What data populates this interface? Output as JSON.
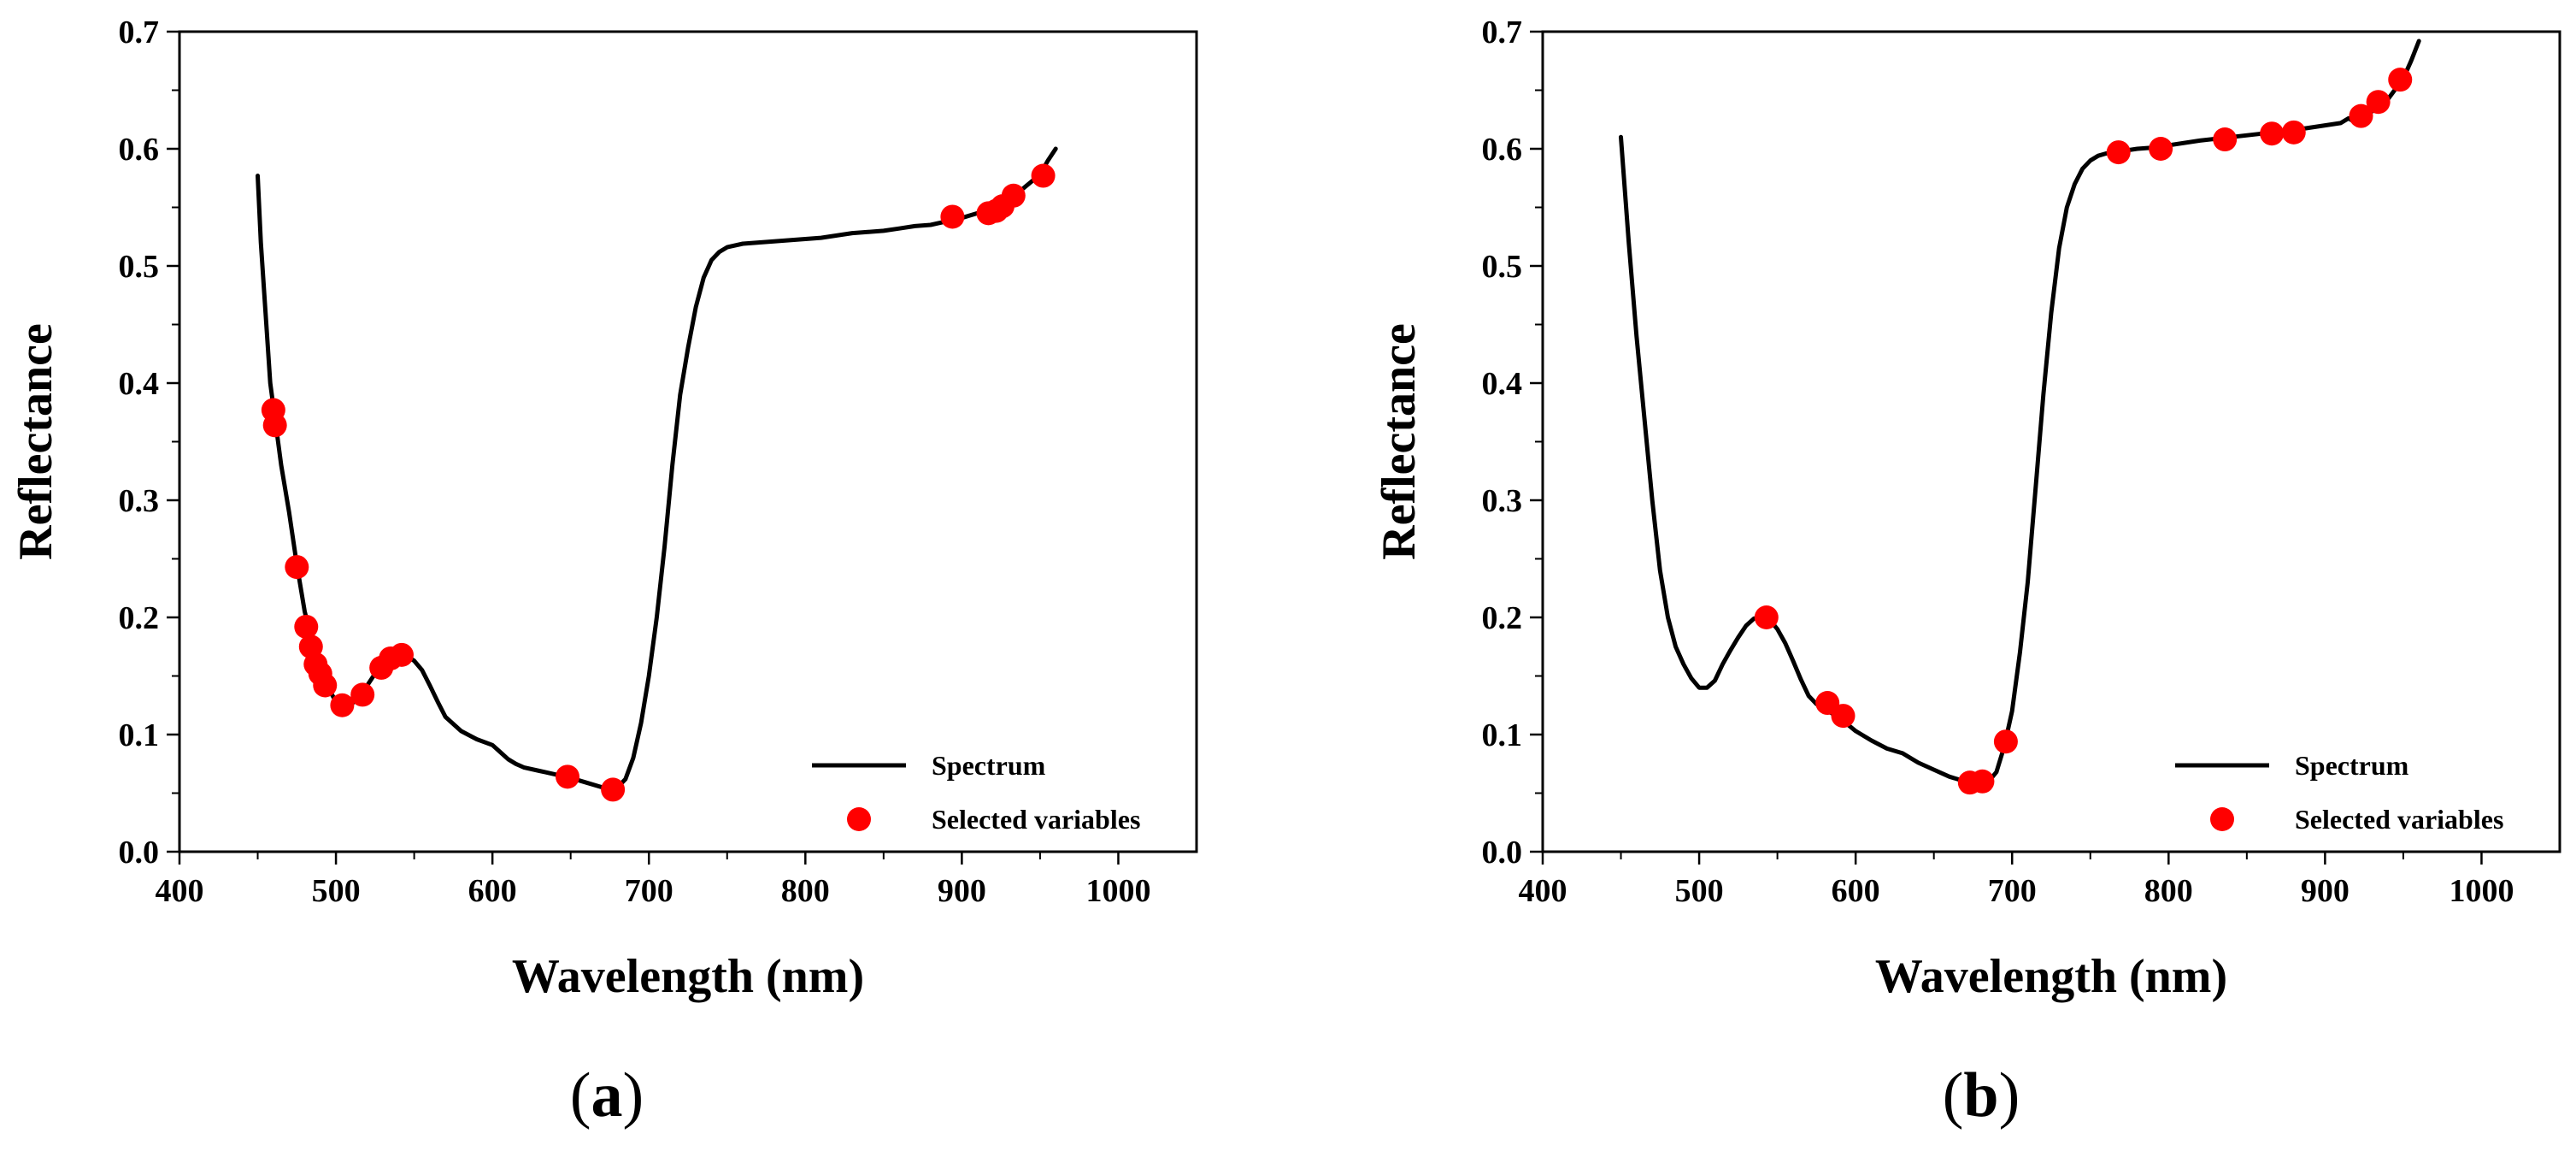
{
  "chart_data": [
    {
      "panel_label": "(a)",
      "panel_letter": "a",
      "type": "line",
      "xlabel": "Wavelength (nm)",
      "ylabel": "Reflectance",
      "xlim": [
        400,
        1050
      ],
      "ylim": [
        0.0,
        0.7
      ],
      "x_ticks": [
        "400",
        "500",
        "600",
        "700",
        "800",
        "900",
        "1000"
      ],
      "y_ticks": [
        "0.0",
        "0.1",
        "0.2",
        "0.3",
        "0.4",
        "0.5",
        "0.6",
        "0.7"
      ],
      "grid": false,
      "legend_position": "bottom-right",
      "colors": {
        "spectrum": "#000000",
        "selected": "#ff0000"
      },
      "series": [
        {
          "name": "Spectrum",
          "style": "line",
          "x": [
            450,
            452,
            455,
            458,
            461,
            465,
            470,
            475,
            480,
            485,
            490,
            495,
            500,
            505,
            510,
            515,
            520,
            525,
            530,
            535,
            540,
            545,
            550,
            555,
            560,
            565,
            570,
            580,
            590,
            600,
            605,
            610,
            615,
            620,
            630,
            640,
            650,
            660,
            670,
            675,
            680,
            685,
            690,
            695,
            700,
            705,
            710,
            715,
            720,
            725,
            730,
            735,
            740,
            745,
            750,
            760,
            770,
            780,
            790,
            800,
            810,
            820,
            830,
            840,
            850,
            860,
            870,
            880,
            890,
            900,
            910,
            920,
            930,
            940,
            950,
            955,
            960
          ],
          "y": [
            0.577,
            0.52,
            0.46,
            0.4,
            0.37,
            0.33,
            0.29,
            0.245,
            0.205,
            0.178,
            0.155,
            0.14,
            0.128,
            0.124,
            0.126,
            0.133,
            0.142,
            0.152,
            0.16,
            0.165,
            0.168,
            0.167,
            0.163,
            0.155,
            0.142,
            0.128,
            0.115,
            0.103,
            0.096,
            0.091,
            0.085,
            0.079,
            0.075,
            0.072,
            0.069,
            0.066,
            0.063,
            0.059,
            0.055,
            0.054,
            0.055,
            0.062,
            0.08,
            0.11,
            0.15,
            0.2,
            0.26,
            0.33,
            0.39,
            0.43,
            0.465,
            0.49,
            0.505,
            0.512,
            0.516,
            0.519,
            0.52,
            0.521,
            0.522,
            0.523,
            0.524,
            0.526,
            0.528,
            0.529,
            0.53,
            0.532,
            0.534,
            0.535,
            0.538,
            0.541,
            0.545,
            0.55,
            0.557,
            0.567,
            0.578,
            0.59,
            0.6
          ]
        },
        {
          "name": "Selected variables",
          "style": "marker",
          "x": [
            460,
            461,
            475,
            481,
            484,
            487,
            490,
            493,
            504,
            517,
            529,
            535,
            542,
            648,
            677,
            894,
            917,
            922,
            926,
            933,
            952
          ],
          "y": [
            0.377,
            0.364,
            0.243,
            0.192,
            0.175,
            0.16,
            0.152,
            0.142,
            0.125,
            0.134,
            0.157,
            0.165,
            0.168,
            0.064,
            0.053,
            0.542,
            0.545,
            0.547,
            0.551,
            0.56,
            0.577
          ]
        }
      ]
    },
    {
      "panel_label": "(b)",
      "panel_letter": "b",
      "type": "line",
      "xlabel": "Wavelength (nm)",
      "ylabel": "Reflectance",
      "xlim": [
        400,
        1050
      ],
      "ylim": [
        0.0,
        0.7
      ],
      "x_ticks": [
        "400",
        "500",
        "600",
        "700",
        "800",
        "900",
        "1000"
      ],
      "y_ticks": [
        "0.0",
        "0.1",
        "0.2",
        "0.3",
        "0.4",
        "0.5",
        "0.6",
        "0.7"
      ],
      "grid": false,
      "legend_position": "bottom-right",
      "colors": {
        "spectrum": "#000000",
        "selected": "#ff0000"
      },
      "series": [
        {
          "name": "Spectrum",
          "style": "line",
          "x": [
            450,
            455,
            460,
            465,
            470,
            475,
            480,
            485,
            490,
            495,
            500,
            505,
            510,
            515,
            520,
            525,
            530,
            535,
            540,
            545,
            550,
            555,
            560,
            565,
            570,
            575,
            580,
            590,
            600,
            610,
            620,
            630,
            640,
            650,
            660,
            670,
            675,
            680,
            685,
            690,
            695,
            700,
            705,
            710,
            715,
            720,
            725,
            730,
            735,
            740,
            745,
            750,
            755,
            760,
            770,
            780,
            790,
            800,
            820,
            840,
            860,
            880,
            900,
            910,
            915,
            920,
            930,
            940,
            950,
            955,
            960
          ],
          "y": [
            0.61,
            0.52,
            0.44,
            0.37,
            0.3,
            0.24,
            0.2,
            0.175,
            0.16,
            0.148,
            0.14,
            0.14,
            0.146,
            0.16,
            0.172,
            0.183,
            0.193,
            0.199,
            0.2,
            0.198,
            0.19,
            0.178,
            0.163,
            0.147,
            0.133,
            0.126,
            0.122,
            0.114,
            0.103,
            0.095,
            0.088,
            0.084,
            0.076,
            0.07,
            0.064,
            0.06,
            0.058,
            0.058,
            0.06,
            0.068,
            0.09,
            0.12,
            0.17,
            0.23,
            0.31,
            0.39,
            0.46,
            0.515,
            0.55,
            0.57,
            0.583,
            0.59,
            0.594,
            0.596,
            0.598,
            0.6,
            0.601,
            0.603,
            0.607,
            0.61,
            0.613,
            0.616,
            0.62,
            0.622,
            0.626,
            0.622,
            0.632,
            0.642,
            0.66,
            0.675,
            0.692
          ]
        },
        {
          "name": "Selected variables",
          "style": "marker",
          "x": [
            543,
            582,
            592,
            673,
            681,
            696,
            768,
            795,
            836,
            866,
            880,
            923,
            934,
            948
          ],
          "y": [
            0.2,
            0.127,
            0.116,
            0.059,
            0.06,
            0.094,
            0.597,
            0.6,
            0.608,
            0.613,
            0.614,
            0.628,
            0.64,
            0.659
          ]
        }
      ]
    }
  ]
}
